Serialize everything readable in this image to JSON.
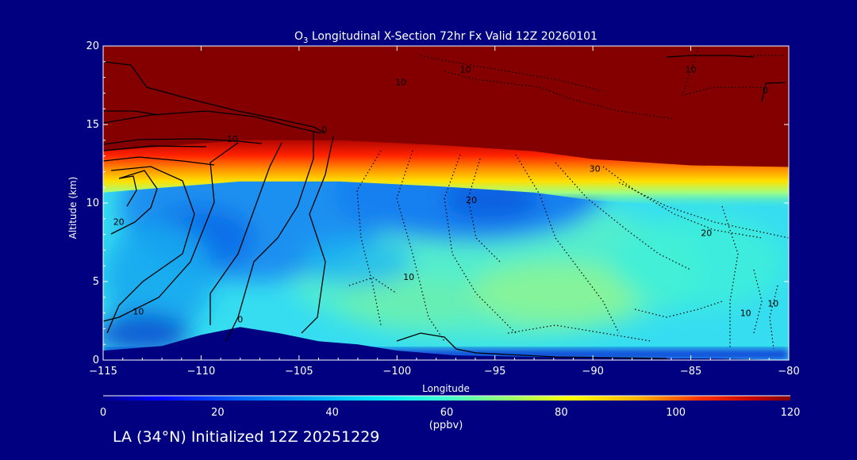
{
  "chart_data": {
    "type": "heatmap",
    "title_prefix": "O",
    "title_sub": "3",
    "title_rest": " Longitudinal X-Section 72hr  Fx Valid 12Z 20260101",
    "xlabel": "Longitude",
    "ylabel": "Altitude (km)",
    "xlim": [
      -115,
      -80
    ],
    "ylim": [
      0,
      20
    ],
    "x_ticks": [
      -115,
      -110,
      -105,
      -100,
      -95,
      -90,
      -85,
      -80
    ],
    "x_tick_labels": [
      "−115",
      "−110",
      "−105",
      "−100",
      "−95",
      "−90",
      "−85",
      "−80"
    ],
    "y_ticks": [
      0,
      5,
      10,
      15,
      20
    ],
    "y_tick_labels": [
      "0",
      "5",
      "10",
      "15",
      "20"
    ],
    "colorbar": {
      "min": 0,
      "max": 120,
      "unit": "(ppbv)",
      "ticks": [
        0,
        20,
        40,
        60,
        80,
        100,
        120
      ],
      "tick_labels": [
        "0",
        "20",
        "40",
        "60",
        "80",
        "100",
        "120"
      ]
    },
    "tropopause_altitude_km": [
      {
        "lon": -115,
        "alt": 13.3
      },
      {
        "lon": -108,
        "alt": 14.0
      },
      {
        "lon": -103,
        "alt": 14.0
      },
      {
        "lon": -98,
        "alt": 13.7
      },
      {
        "lon": -93,
        "alt": 13.3
      },
      {
        "lon": -90,
        "alt": 12.8
      },
      {
        "lon": -85,
        "alt": 12.4
      },
      {
        "lon": -80,
        "alt": 12.3
      }
    ],
    "terrain_altitude_km": [
      {
        "lon": -115,
        "alt": 0.6
      },
      {
        "lon": -112,
        "alt": 0.9
      },
      {
        "lon": -110,
        "alt": 1.6
      },
      {
        "lon": -108,
        "alt": 2.1
      },
      {
        "lon": -106,
        "alt": 1.7
      },
      {
        "lon": -104,
        "alt": 1.2
      },
      {
        "lon": -102,
        "alt": 1.0
      },
      {
        "lon": -100,
        "alt": 0.6
      },
      {
        "lon": -97,
        "alt": 0.3
      },
      {
        "lon": -93,
        "alt": 0.2
      },
      {
        "lon": -88,
        "alt": 0.1
      },
      {
        "lon": -84,
        "alt": 0.1
      },
      {
        "lon": -80,
        "alt": 0.0
      }
    ],
    "contour_labels": [
      {
        "text": "10",
        "lon": -113.2,
        "alt": 2.9
      },
      {
        "text": "20",
        "lon": -114.2,
        "alt": 8.6
      },
      {
        "text": "10",
        "lon": -108.4,
        "alt": 13.9
      },
      {
        "text": "0",
        "lon": -103.7,
        "alt": 14.5
      },
      {
        "text": "0",
        "lon": -108.0,
        "alt": 2.4
      },
      {
        "text": "10",
        "lon": -99.8,
        "alt": 17.5
      },
      {
        "text": "10",
        "lon": -96.5,
        "alt": 18.3
      },
      {
        "text": "10",
        "lon": -85.0,
        "alt": 18.3
      },
      {
        "text": "20",
        "lon": -96.2,
        "alt": 10.0
      },
      {
        "text": "10",
        "lon": -99.4,
        "alt": 5.1
      },
      {
        "text": "30",
        "lon": -89.9,
        "alt": 12.0
      },
      {
        "text": "20",
        "lon": -84.2,
        "alt": 7.9
      },
      {
        "text": "10",
        "lon": -82.2,
        "alt": 2.8
      },
      {
        "text": "10",
        "lon": -80.8,
        "alt": 3.4
      },
      {
        "text": "0",
        "lon": -81.2,
        "alt": 17.0
      }
    ]
  },
  "footer": {
    "location_text": "LA (34°N) Initialized 12Z 20251229"
  }
}
